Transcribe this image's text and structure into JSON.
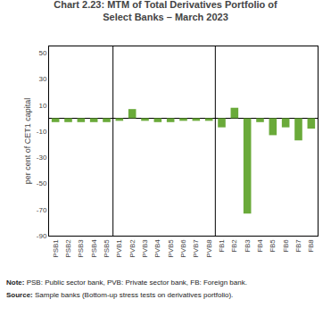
{
  "chart_data": {
    "type": "bar",
    "title": "Chart 2.23: MTM of Total Derivatives Portfolio of",
    "subtitle": "Select Banks – March 2023",
    "ylabel": "per cent of CET1 capital",
    "categories": [
      "PSB1",
      "PSB2",
      "PSB3",
      "PSB4",
      "PSB5",
      "PVB1",
      "PVB2",
      "PVB3",
      "PVB4",
      "PVB5",
      "PVB6",
      "PVB7",
      "PVB8",
      "FB1",
      "FB2",
      "FB3",
      "FB4",
      "FB5",
      "FB6",
      "FB7",
      "FB8"
    ],
    "values": [
      -3,
      -3,
      -3,
      -3,
      -3,
      -2,
      7,
      -2,
      -3,
      -3,
      -2,
      -2,
      -2,
      -7,
      8,
      -73,
      -3,
      -13,
      -7,
      -17,
      -8
    ],
    "color": "#6aaa3a",
    "ylim": [
      -90,
      55
    ],
    "yticks": [
      50,
      30,
      10,
      -10,
      -30,
      -50,
      -70,
      -90
    ],
    "grid": false,
    "annotations": [
      "Note: PSB: Public sector bank, PVB: Private sector bank, FB: Foreign bank.",
      "Source: Sample banks (Bottom-up stress tests on derivatives portfolio)."
    ]
  }
}
